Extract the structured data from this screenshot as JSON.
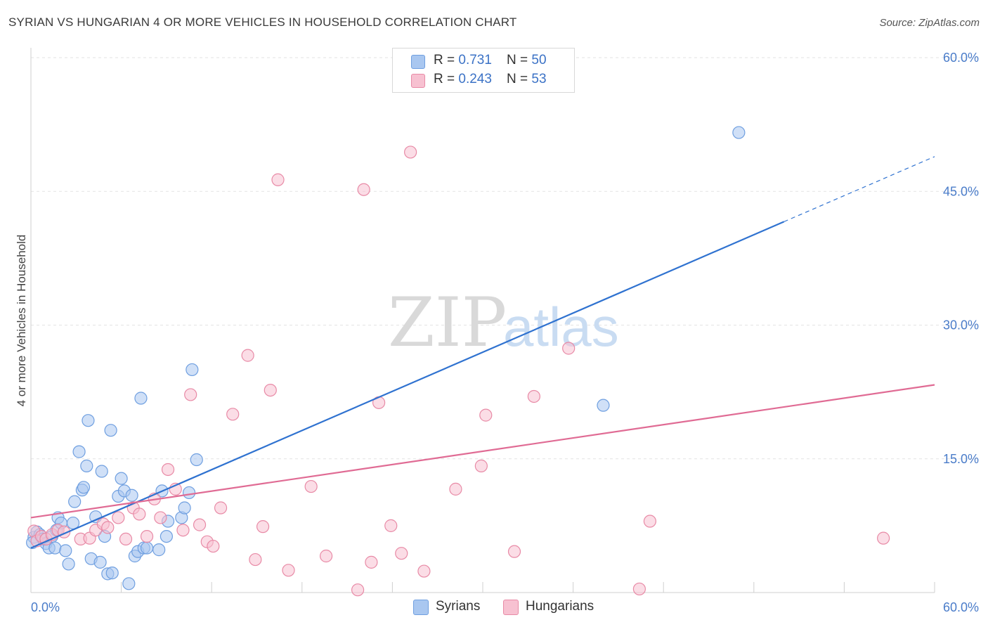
{
  "title": "SYRIAN VS HUNGARIAN 4 OR MORE VEHICLES IN HOUSEHOLD CORRELATION CHART",
  "source": "Source: ZipAtlas.com",
  "watermark": {
    "zip": "ZIP",
    "atlas": "atlas"
  },
  "legend": {
    "rows": [
      {
        "r_label": "R = ",
        "r_value": "0.731",
        "n_label": "N = ",
        "n_value": "50",
        "color": "#a9c7f0",
        "border": "#6f9fe0"
      },
      {
        "r_label": "R = ",
        "r_value": "0.243",
        "n_label": "N = ",
        "n_value": "53",
        "color": "#f7c1d1",
        "border": "#e88aa6"
      }
    ]
  },
  "bottom_legend": [
    {
      "label": "Syrians",
      "color": "#a9c7f0",
      "border": "#6f9fe0"
    },
    {
      "label": "Hungarians",
      "color": "#f7c1d1",
      "border": "#e88aa6"
    }
  ],
  "chart_data": {
    "type": "scatter",
    "ylabel": "4 or more Vehicles in Household",
    "xlim": [
      0,
      60
    ],
    "ylim": [
      0,
      60
    ],
    "x_tick_labels": [
      "0.0%",
      "60.0%"
    ],
    "y_ticks": [
      15,
      30,
      45,
      60
    ],
    "y_tick_labels": [
      "15.0%",
      "30.0%",
      "45.0%",
      "60.0%"
    ],
    "grid": true,
    "series": [
      {
        "name": "Syrians",
        "color": "#6f9fe0",
        "fill": "#a9c7f0",
        "trend": {
          "x0": 0,
          "y0": 5.0,
          "x1": 50,
          "y1": 41.6,
          "dashed_to_x": 60,
          "dashed_to_y": 48.9,
          "color": "#2f72d0"
        },
        "points": [
          [
            0.2,
            6.2
          ],
          [
            0.4,
            6.8
          ],
          [
            0.6,
            6.5
          ],
          [
            0.8,
            6.0
          ],
          [
            1.0,
            5.5
          ],
          [
            1.2,
            5.0
          ],
          [
            1.4,
            6.3
          ],
          [
            1.6,
            5.0
          ],
          [
            1.7,
            7.0
          ],
          [
            1.8,
            8.4
          ],
          [
            2.0,
            7.8
          ],
          [
            2.3,
            4.7
          ],
          [
            2.5,
            3.2
          ],
          [
            2.8,
            7.8
          ],
          [
            2.9,
            10.2
          ],
          [
            3.2,
            15.8
          ],
          [
            3.4,
            11.5
          ],
          [
            3.5,
            11.8
          ],
          [
            3.7,
            14.2
          ],
          [
            3.8,
            19.3
          ],
          [
            4.0,
            3.8
          ],
          [
            4.3,
            8.5
          ],
          [
            4.6,
            3.4
          ],
          [
            4.7,
            13.6
          ],
          [
            4.9,
            6.3
          ],
          [
            5.1,
            2.1
          ],
          [
            5.3,
            18.2
          ],
          [
            5.4,
            2.2
          ],
          [
            5.8,
            10.8
          ],
          [
            6.0,
            12.8
          ],
          [
            6.2,
            11.4
          ],
          [
            6.5,
            1.0
          ],
          [
            6.7,
            10.9
          ],
          [
            6.9,
            4.1
          ],
          [
            7.1,
            4.6
          ],
          [
            7.3,
            21.8
          ],
          [
            7.5,
            5.0
          ],
          [
            7.7,
            5.0
          ],
          [
            8.5,
            4.8
          ],
          [
            8.7,
            11.4
          ],
          [
            9.1,
            8.0
          ],
          [
            9.0,
            6.3
          ],
          [
            10.0,
            8.4
          ],
          [
            10.2,
            9.5
          ],
          [
            10.5,
            11.2
          ],
          [
            10.7,
            25.0
          ],
          [
            11.0,
            14.9
          ],
          [
            38.0,
            21.0
          ],
          [
            47.0,
            51.6
          ],
          [
            0.1,
            5.6
          ]
        ]
      },
      {
        "name": "Hungarians",
        "color": "#e88aa6",
        "fill": "#f7c1d1",
        "trend": {
          "x0": 0,
          "y0": 8.4,
          "x1": 60,
          "y1": 23.3,
          "color": "#e06b94"
        },
        "points": [
          [
            0.2,
            6.9
          ],
          [
            0.4,
            5.8
          ],
          [
            0.7,
            6.3
          ],
          [
            1.0,
            6.0
          ],
          [
            1.4,
            6.5
          ],
          [
            1.8,
            7.0
          ],
          [
            2.2,
            6.8
          ],
          [
            3.3,
            6.0
          ],
          [
            3.9,
            6.1
          ],
          [
            4.3,
            7.0
          ],
          [
            4.8,
            7.7
          ],
          [
            5.1,
            7.3
          ],
          [
            5.8,
            8.4
          ],
          [
            6.3,
            6.0
          ],
          [
            6.8,
            9.5
          ],
          [
            7.2,
            8.8
          ],
          [
            7.7,
            6.3
          ],
          [
            8.2,
            10.5
          ],
          [
            8.6,
            8.4
          ],
          [
            9.1,
            13.8
          ],
          [
            9.6,
            11.6
          ],
          [
            10.1,
            7.0
          ],
          [
            10.6,
            22.2
          ],
          [
            11.2,
            7.6
          ],
          [
            11.7,
            5.7
          ],
          [
            12.1,
            5.2
          ],
          [
            12.6,
            9.5
          ],
          [
            13.4,
            20.0
          ],
          [
            14.4,
            26.6
          ],
          [
            14.9,
            3.7
          ],
          [
            15.4,
            7.4
          ],
          [
            15.9,
            22.7
          ],
          [
            16.4,
            46.3
          ],
          [
            17.1,
            2.5
          ],
          [
            18.6,
            11.9
          ],
          [
            19.6,
            4.1
          ],
          [
            21.7,
            0.3
          ],
          [
            22.1,
            45.2
          ],
          [
            22.6,
            3.4
          ],
          [
            23.1,
            21.3
          ],
          [
            23.9,
            7.5
          ],
          [
            24.6,
            4.4
          ],
          [
            25.2,
            49.4
          ],
          [
            26.1,
            2.4
          ],
          [
            28.2,
            11.6
          ],
          [
            29.9,
            14.2
          ],
          [
            30.2,
            19.9
          ],
          [
            32.1,
            4.6
          ],
          [
            33.4,
            22.0
          ],
          [
            35.7,
            27.4
          ],
          [
            40.4,
            0.4
          ],
          [
            41.1,
            8.0
          ],
          [
            56.6,
            6.1
          ]
        ]
      }
    ]
  }
}
